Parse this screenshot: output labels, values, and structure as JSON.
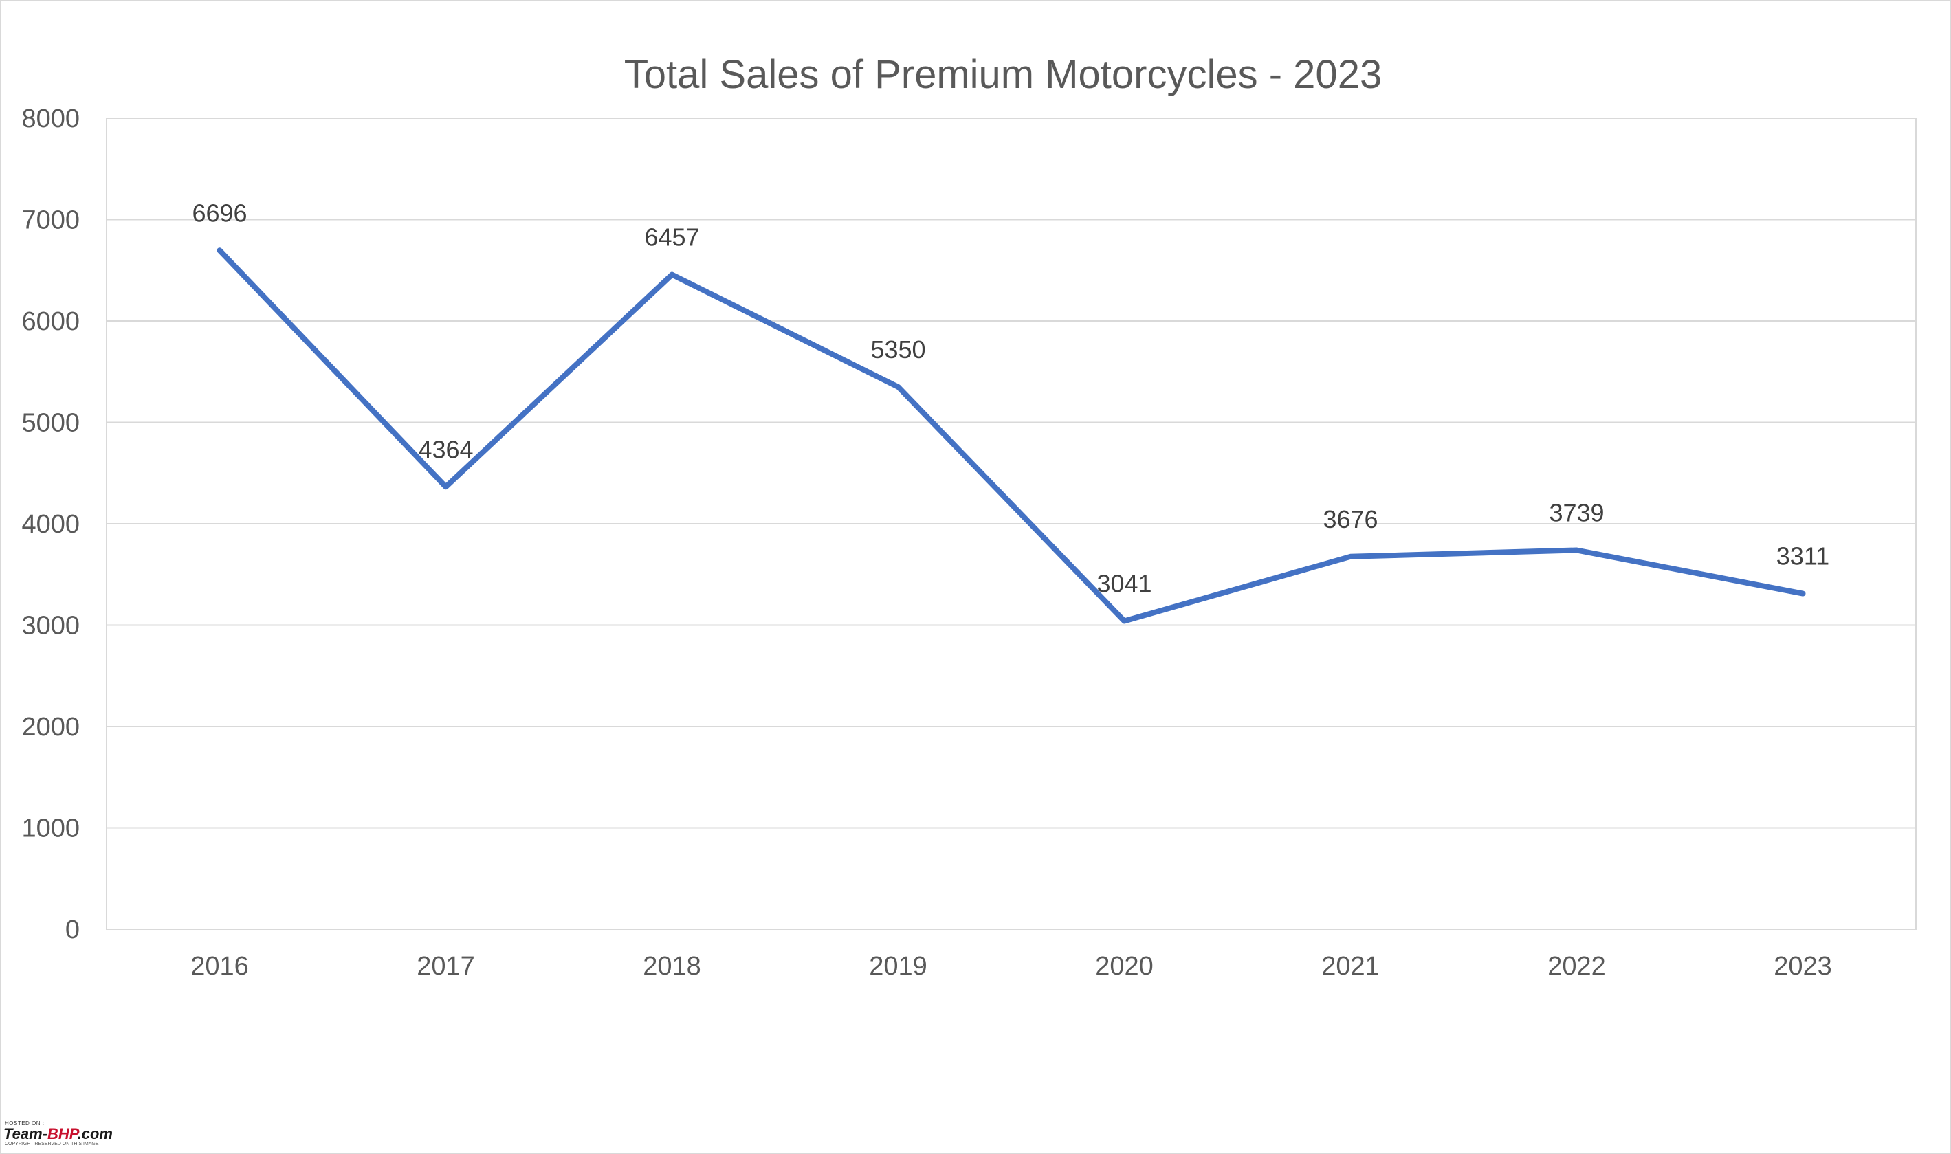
{
  "chart_data": {
    "type": "line",
    "title": "Total Sales of Premium Motorcycles - 2023",
    "xlabel": "",
    "ylabel": "",
    "categories": [
      "2016",
      "2017",
      "2018",
      "2019",
      "2020",
      "2021",
      "2022",
      "2023"
    ],
    "values": [
      6696,
      4364,
      6457,
      5350,
      3041,
      3676,
      3739,
      3311
    ],
    "data_labels": [
      "6696",
      "4364",
      "6457",
      "5350",
      "3041",
      "3676",
      "3739",
      "3311"
    ],
    "ylim": [
      0,
      8000
    ],
    "yticks": [
      0,
      1000,
      2000,
      3000,
      4000,
      5000,
      6000,
      7000,
      8000
    ],
    "ytick_labels": [
      "0",
      "1000",
      "2000",
      "3000",
      "4000",
      "5000",
      "6000",
      "7000",
      "8000"
    ],
    "grid": true,
    "legend": "none",
    "line_color": "#4472c4"
  },
  "watermark": {
    "hosted_text": "HOSTED ON :",
    "brand_prefix": "Team-",
    "brand_accent": "BHP",
    "brand_suffix": ".com",
    "sub_text": "COPYRIGHT RESERVED ON THIS IMAGE"
  }
}
